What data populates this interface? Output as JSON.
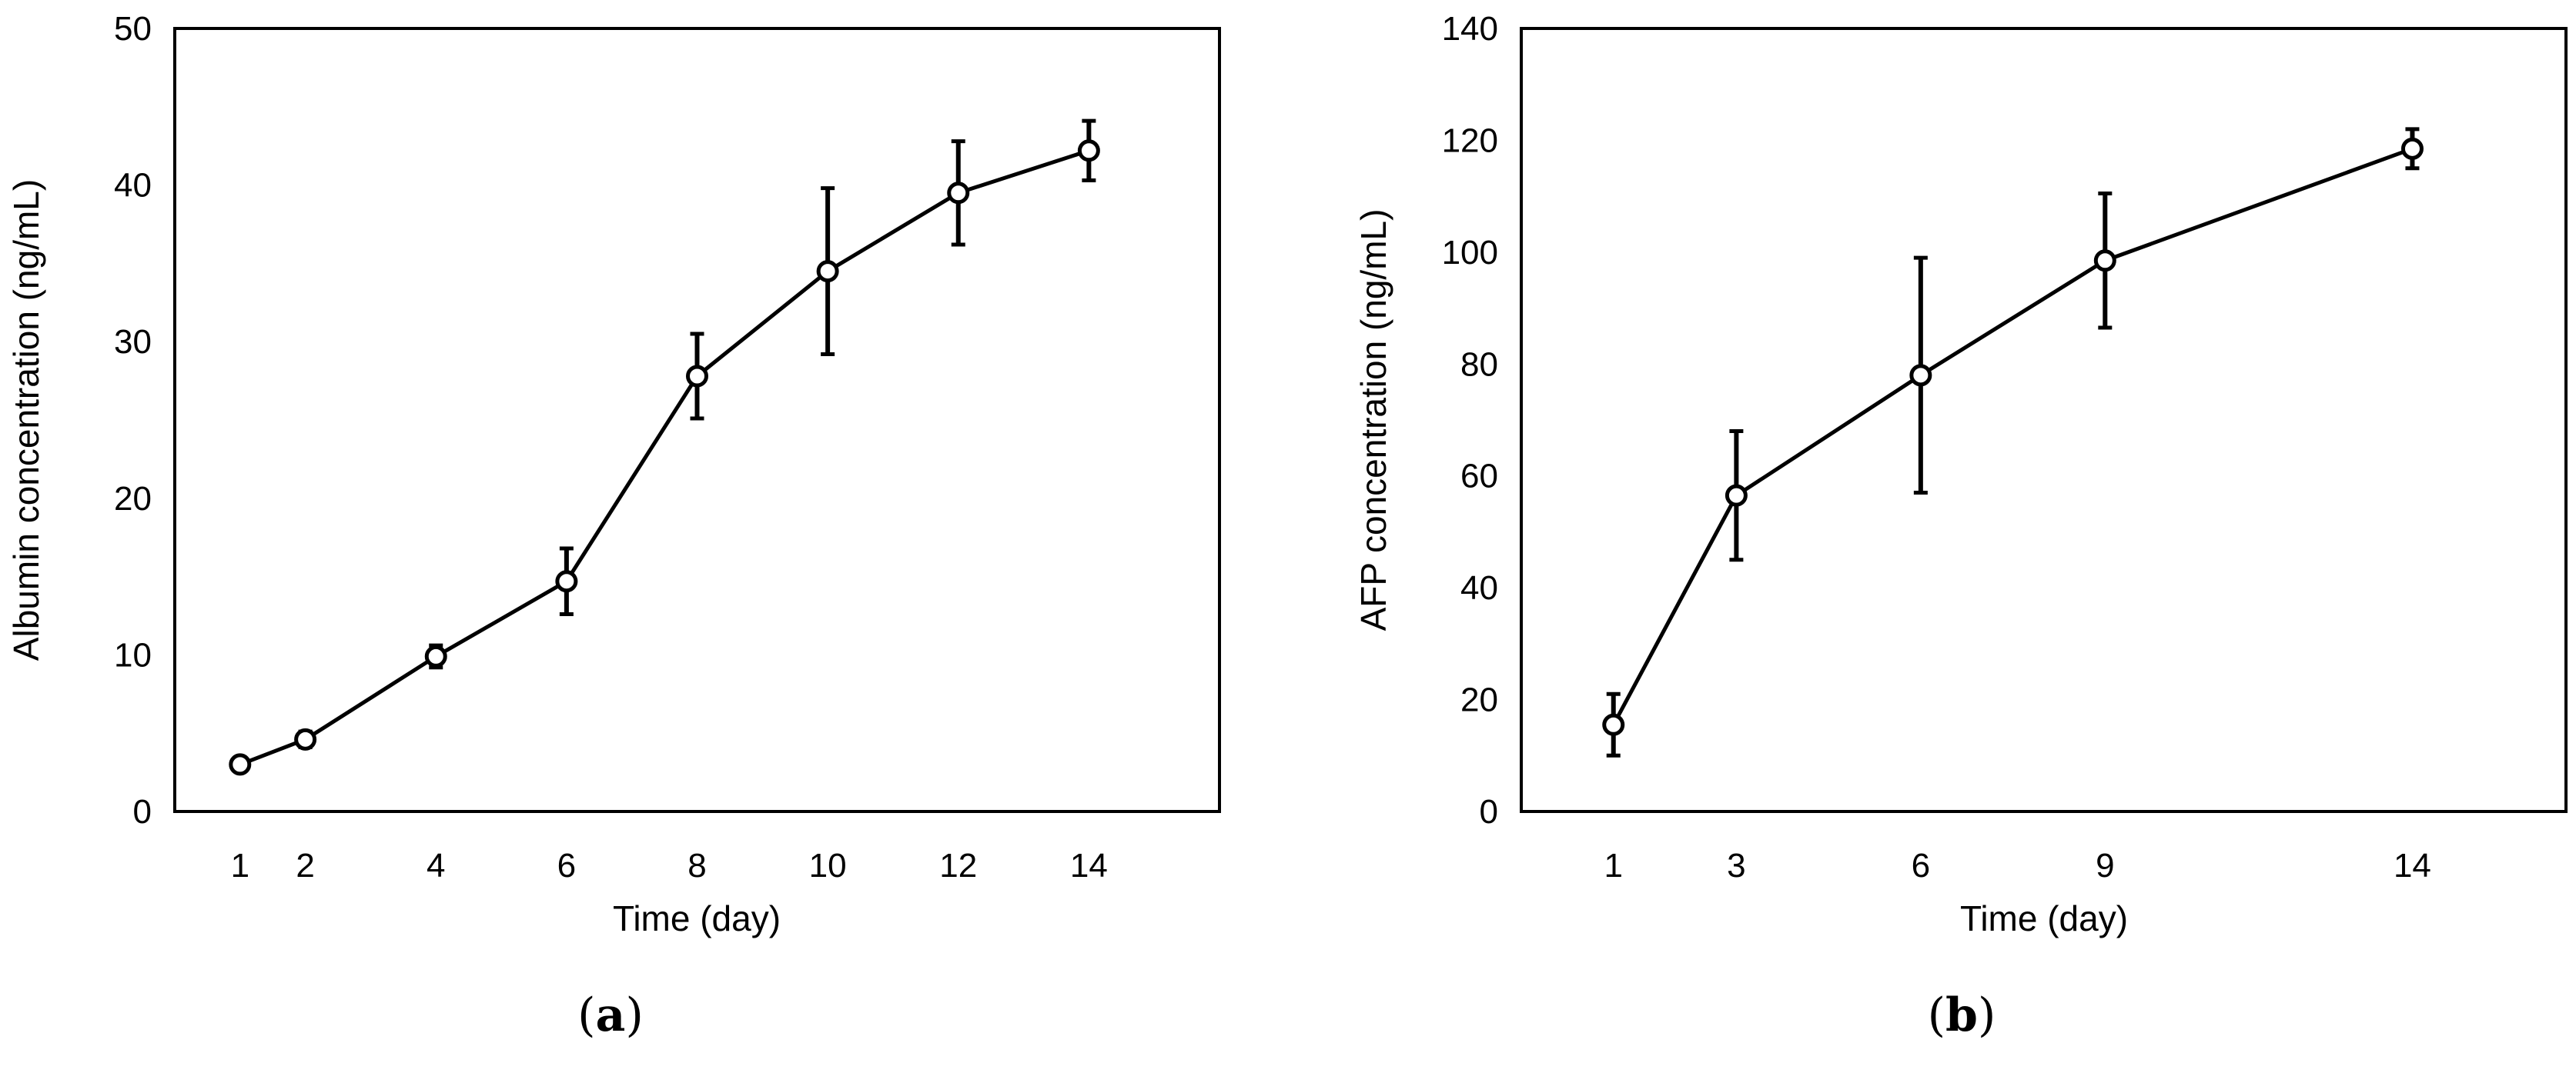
{
  "chart_data": [
    {
      "type": "line",
      "panel_label": "a",
      "title": "",
      "xlabel": "Time (day)",
      "ylabel": "Albumin concentration (ng/mL)",
      "x": [
        1,
        2,
        4,
        6,
        8,
        10,
        12,
        14
      ],
      "x_tick_labels": [
        "1",
        "2",
        "4",
        "6",
        "8",
        "10",
        "12",
        "14"
      ],
      "y_tick_labels": [
        "0",
        "10",
        "20",
        "30",
        "40",
        "50"
      ],
      "xlim": [
        0,
        16
      ],
      "ylim": [
        0,
        50
      ],
      "series": [
        {
          "name": "Albumin",
          "values": [
            3.0,
            4.6,
            9.9,
            14.7,
            27.8,
            34.5,
            39.5,
            42.2
          ],
          "errors": [
            0.4,
            0.5,
            0.7,
            2.1,
            2.7,
            5.3,
            3.3,
            1.9
          ]
        }
      ],
      "grid": false,
      "legend": "none"
    },
    {
      "type": "line",
      "panel_label": "b",
      "title": "",
      "xlabel": "Time (day)",
      "ylabel": "AFP concentration (ng/mL)",
      "x": [
        1,
        3,
        6,
        9,
        14
      ],
      "x_tick_labels": [
        "1",
        "3",
        "6",
        "9",
        "14"
      ],
      "y_tick_labels": [
        "0",
        "20",
        "40",
        "60",
        "80",
        "100",
        "120",
        "140"
      ],
      "xlim": [
        -0.5,
        16.5
      ],
      "ylim": [
        0,
        140
      ],
      "series": [
        {
          "name": "AFP",
          "values": [
            15.5,
            56.5,
            78.0,
            98.5,
            118.5
          ],
          "errors": [
            5.5,
            11.5,
            21.0,
            12.0,
            3.5
          ]
        }
      ],
      "grid": false,
      "legend": "none"
    }
  ],
  "style": {
    "line_color": "#000000",
    "marker_fill": "#ffffff",
    "background": "#ffffff"
  }
}
